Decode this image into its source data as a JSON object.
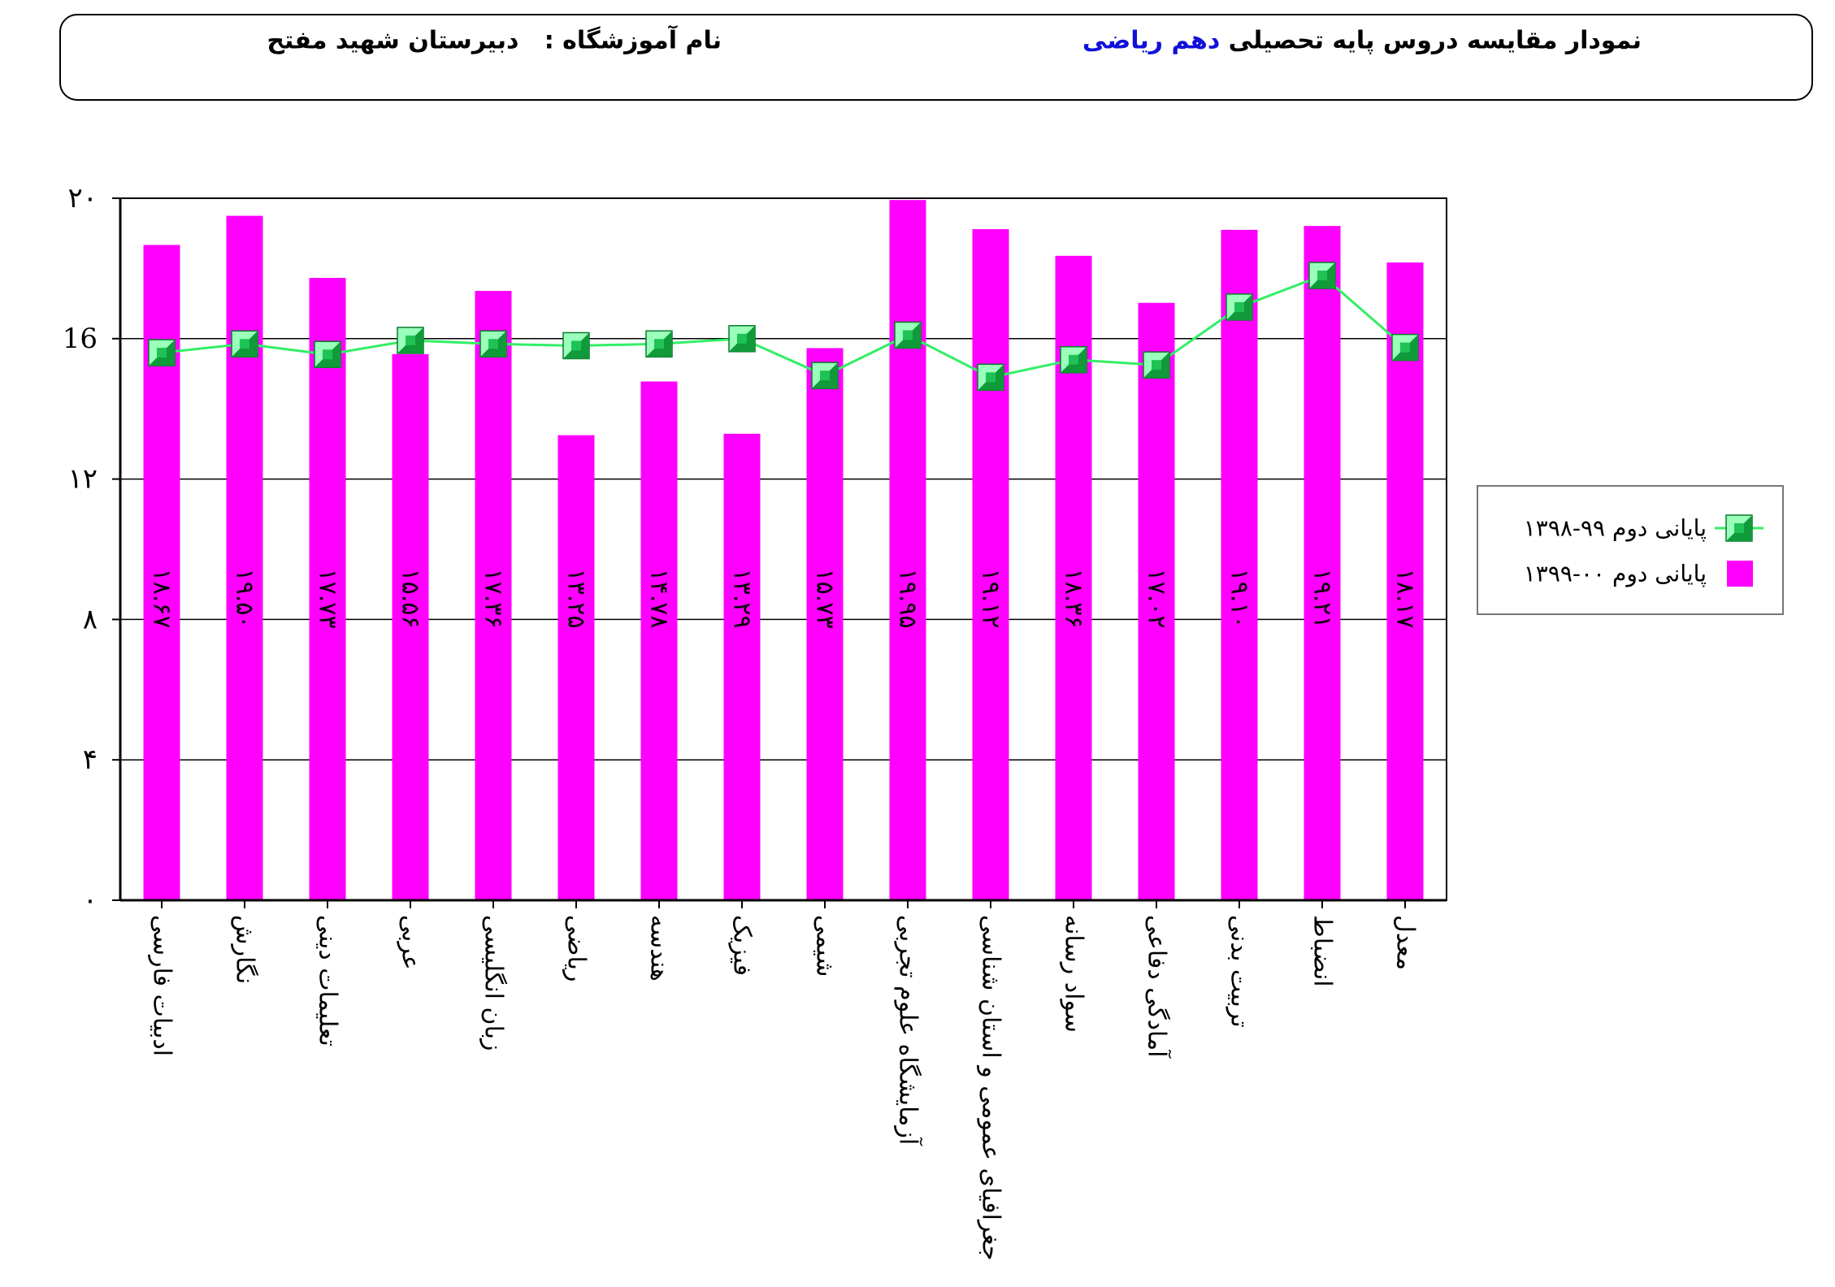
{
  "header": {
    "title_prefix": "نمودار مقایسه دروس پایه تحصیلی",
    "grade": "دهم ریاضی",
    "school_label": "نام آموزشگاه :",
    "school_name": "دبیرستان شهید مفتح"
  },
  "colors": {
    "bar": "#ff00ff",
    "line": "#33ee66",
    "marker_light": "#99ffbb",
    "marker_dark": "#109a3a"
  },
  "chart_data": {
    "type": "bar",
    "categories": [
      "ادبیات فارسی",
      "نگارش",
      "تعلیمات دینی",
      "عربی",
      "زبان انگلیسی",
      "ریاضی",
      "هندسه",
      "فیزیک",
      "شیمی",
      "آزمایشگاه علوم تجربی",
      "جغرافیای عمومی و استان شناسی",
      "سواد رسانه",
      "آمادگی دفاعی",
      "تربیت بدنی",
      "انضباط",
      "معدل"
    ],
    "series": [
      {
        "name": "پایانی دوم ۰۰-۱۳۹۹",
        "kind": "bar",
        "values": [
          18.67,
          19.5,
          17.73,
          15.56,
          17.36,
          13.25,
          14.78,
          13.29,
          15.73,
          19.95,
          19.12,
          18.36,
          17.02,
          19.1,
          19.21,
          18.17
        ],
        "labels": [
          "۱۸.۶۷",
          "۱۹.۵۰",
          "۱۷.۷۳",
          "۱۵.۵۶",
          "۱۷.۳۶",
          "۱۳.۲۵",
          "۱۴.۷۸",
          "۱۳.۲۹",
          "۱۵.۷۳",
          "۱۹.۹۵",
          "۱۹.۱۲",
          "۱۸.۳۶",
          "۱۷.۰۲",
          "۱۹.۱۰",
          "۱۹.۲۱",
          "۱۸.۱۷"
        ]
      },
      {
        "name": "پایانی دوم ۹۹-۱۳۹۸",
        "kind": "line",
        "values": [
          15.6,
          15.85,
          15.55,
          15.95,
          15.85,
          15.8,
          15.85,
          16.0,
          14.95,
          16.1,
          14.9,
          15.4,
          15.25,
          16.9,
          17.8,
          15.75
        ]
      }
    ],
    "yticks": [
      0,
      4,
      8,
      12,
      16,
      20
    ],
    "ytick_labels": [
      "۰",
      "۴",
      "۸",
      "۱۲",
      "16",
      "۲۰"
    ],
    "ylim": [
      0,
      20
    ],
    "grid": true,
    "legend_position": "right"
  }
}
